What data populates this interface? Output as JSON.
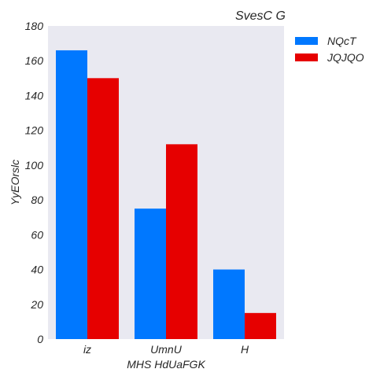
{
  "chart_data": {
    "type": "bar",
    "title": "SvesC G",
    "xlabel": "MHS HdUaFGK",
    "ylabel": "YyEOrslc",
    "categories": [
      "iz",
      "UmnU",
      "H"
    ],
    "series": [
      {
        "name": "NQcT",
        "values": [
          166,
          75,
          40
        ],
        "color": "#0078ff"
      },
      {
        "name": "JQJQO",
        "values": [
          150,
          112,
          15
        ],
        "color": "#e60000"
      }
    ],
    "ylim": [
      0,
      180
    ],
    "yticks": [
      "0",
      "20",
      "40",
      "60",
      "80",
      "100",
      "120",
      "140",
      "160",
      "180"
    ],
    "grid": false,
    "legend_position": "outside-top-right",
    "plot_background": "#e9e9f1"
  }
}
